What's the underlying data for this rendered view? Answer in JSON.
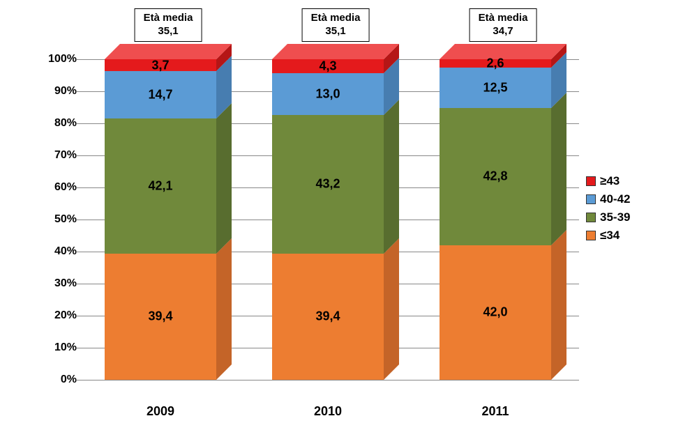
{
  "chart": {
    "type": "stacked-bar-3d-100pct",
    "background_color": "#ffffff",
    "categories": [
      "2009",
      "2010",
      "2011"
    ],
    "callouts": [
      {
        "label_line1": "Età media",
        "label_line2": "35,1"
      },
      {
        "label_line1": "Età media",
        "label_line2": "35,1"
      },
      {
        "label_line1": "Età media",
        "label_line2": "34,7"
      }
    ],
    "series": [
      {
        "name": "≤34",
        "color": "#ed7d31",
        "side_color": "#c46428",
        "top_color": "#f29a5e",
        "values": [
          39.4,
          39.4,
          42.0
        ],
        "labels": [
          "39,4",
          "39,4",
          "42,0"
        ]
      },
      {
        "name": "35-39",
        "color": "#70893b",
        "side_color": "#586d2f",
        "top_color": "#8aa350",
        "values": [
          42.1,
          43.2,
          42.8
        ],
        "labels": [
          "42,1",
          "43,2",
          "42,8"
        ]
      },
      {
        "name": "40-42",
        "color": "#5b9bd5",
        "side_color": "#477db0",
        "top_color": "#7fb3e0",
        "values": [
          14.7,
          13.0,
          12.5
        ],
        "labels": [
          "14,7",
          "13,0",
          "12,5"
        ]
      },
      {
        "name": "≥43",
        "color": "#e41a1c",
        "side_color": "#b51616",
        "top_color": "#ef4e4f",
        "values": [
          3.7,
          4.3,
          2.6
        ],
        "labels": [
          "3,7",
          "4,3",
          "2,6"
        ]
      }
    ],
    "legend_order": [
      "≥43",
      "40-42",
      "35-39",
      "≤34"
    ],
    "y_axis": {
      "min": 0,
      "max": 100,
      "step": 10,
      "tick_labels": [
        "0%",
        "10%",
        "20%",
        "30%",
        "40%",
        "50%",
        "60%",
        "70%",
        "80%",
        "90%",
        "100%"
      ],
      "label_fontsize": 16
    },
    "x_axis": {
      "label_fontsize": 18
    },
    "data_label_fontsize": 18,
    "legend_fontsize": 17,
    "bar_width_ratio": 0.67,
    "grid_color": "#888888"
  }
}
